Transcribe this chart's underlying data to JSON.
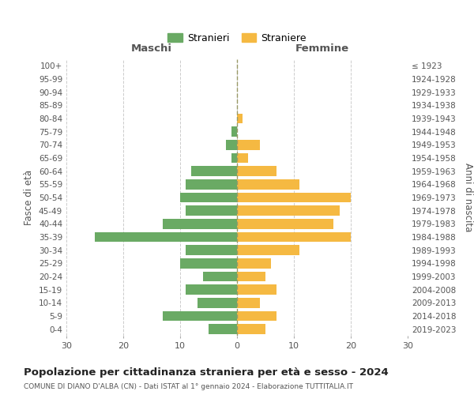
{
  "age_groups": [
    "0-4",
    "5-9",
    "10-14",
    "15-19",
    "20-24",
    "25-29",
    "30-34",
    "35-39",
    "40-44",
    "45-49",
    "50-54",
    "55-59",
    "60-64",
    "65-69",
    "70-74",
    "75-79",
    "80-84",
    "85-89",
    "90-94",
    "95-99",
    "100+"
  ],
  "birth_years": [
    "2019-2023",
    "2014-2018",
    "2009-2013",
    "2004-2008",
    "1999-2003",
    "1994-1998",
    "1989-1993",
    "1984-1988",
    "1979-1983",
    "1974-1978",
    "1969-1973",
    "1964-1968",
    "1959-1963",
    "1954-1958",
    "1949-1953",
    "1944-1948",
    "1939-1943",
    "1934-1938",
    "1929-1933",
    "1924-1928",
    "≤ 1923"
  ],
  "males": [
    5,
    13,
    7,
    9,
    6,
    10,
    9,
    25,
    13,
    9,
    10,
    9,
    8,
    1,
    2,
    1,
    0,
    0,
    0,
    0,
    0
  ],
  "females": [
    5,
    7,
    4,
    7,
    5,
    6,
    11,
    20,
    17,
    18,
    20,
    11,
    7,
    2,
    4,
    0,
    1,
    0,
    0,
    0,
    0
  ],
  "male_color": "#6aaa64",
  "female_color": "#f5b942",
  "grid_color": "#cccccc",
  "center_line_color": "#999966",
  "background_color": "#ffffff",
  "title": "Popolazione per cittadinanza straniera per età e sesso - 2024",
  "subtitle": "COMUNE DI DIANO D'ALBA (CN) - Dati ISTAT al 1° gennaio 2024 - Elaborazione TUTTITALIA.IT",
  "xlabel_left": "Maschi",
  "xlabel_right": "Femmine",
  "ylabel_left": "Fasce di età",
  "ylabel_right": "Anni di nascita",
  "legend_male": "Stranieri",
  "legend_female": "Straniere",
  "xlim": 30
}
